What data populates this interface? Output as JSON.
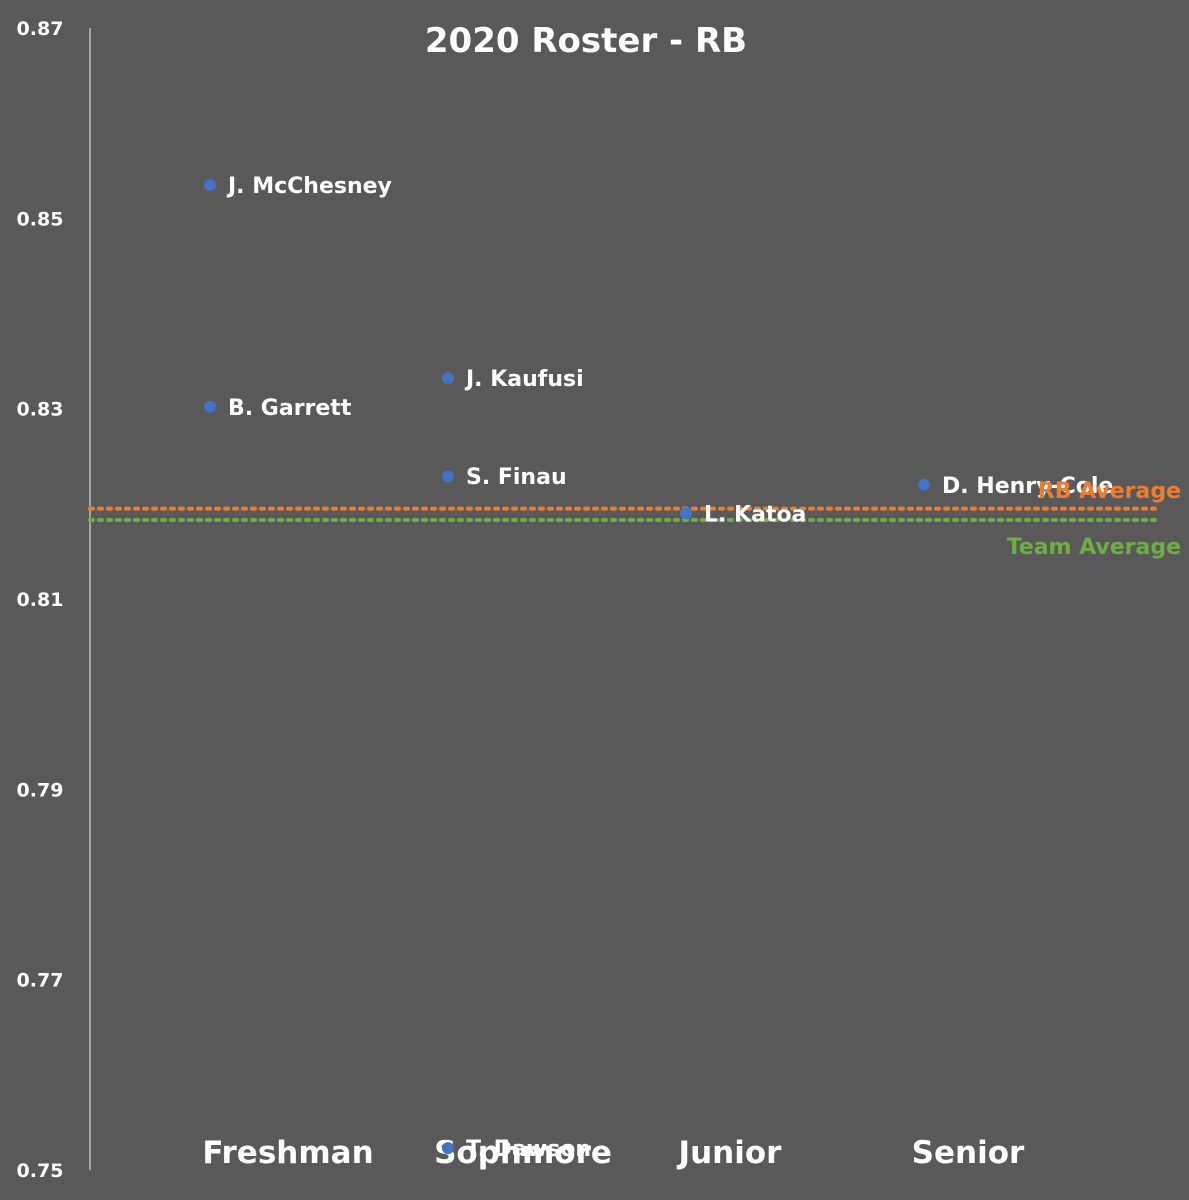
{
  "chart_data": {
    "type": "scatter",
    "title": "2020 Roster - RB",
    "xlabel": "",
    "ylabel": "",
    "ylim": [
      0.75,
      0.87
    ],
    "y_ticks": [
      "0.87",
      "0.85",
      "0.83",
      "0.81",
      "0.79",
      "0.77",
      "0.75"
    ],
    "categories": [
      "Freshman",
      "Sophmore",
      "Junior",
      "Senior"
    ],
    "grid": false,
    "points": [
      {
        "label": "J. McChesney",
        "category": "Freshman",
        "y": 0.8535
      },
      {
        "label": "B. Garrett",
        "category": "Freshman",
        "y": 0.8302
      },
      {
        "label": "J. Kaufusi",
        "category": "Sophmore",
        "y": 0.8332
      },
      {
        "label": "S. Finau",
        "category": "Sophmore",
        "y": 0.8229
      },
      {
        "label": "T. Dawson",
        "category": "Sophmore",
        "y": 0.7523
      },
      {
        "label": "L. Katoa",
        "category": "Junior",
        "y": 0.819
      },
      {
        "label": "D. Henry-Cole",
        "category": "Senior",
        "y": 0.822
      }
    ],
    "reference_lines": [
      {
        "name": "RB Average",
        "y": 0.8195,
        "color": "#ED7D31"
      },
      {
        "name": "Team Average",
        "y": 0.8183,
        "color": "#70AD47"
      }
    ],
    "colors": {
      "background": "#595959",
      "marker": "#4472C4",
      "text": "#FFFFFF"
    }
  }
}
